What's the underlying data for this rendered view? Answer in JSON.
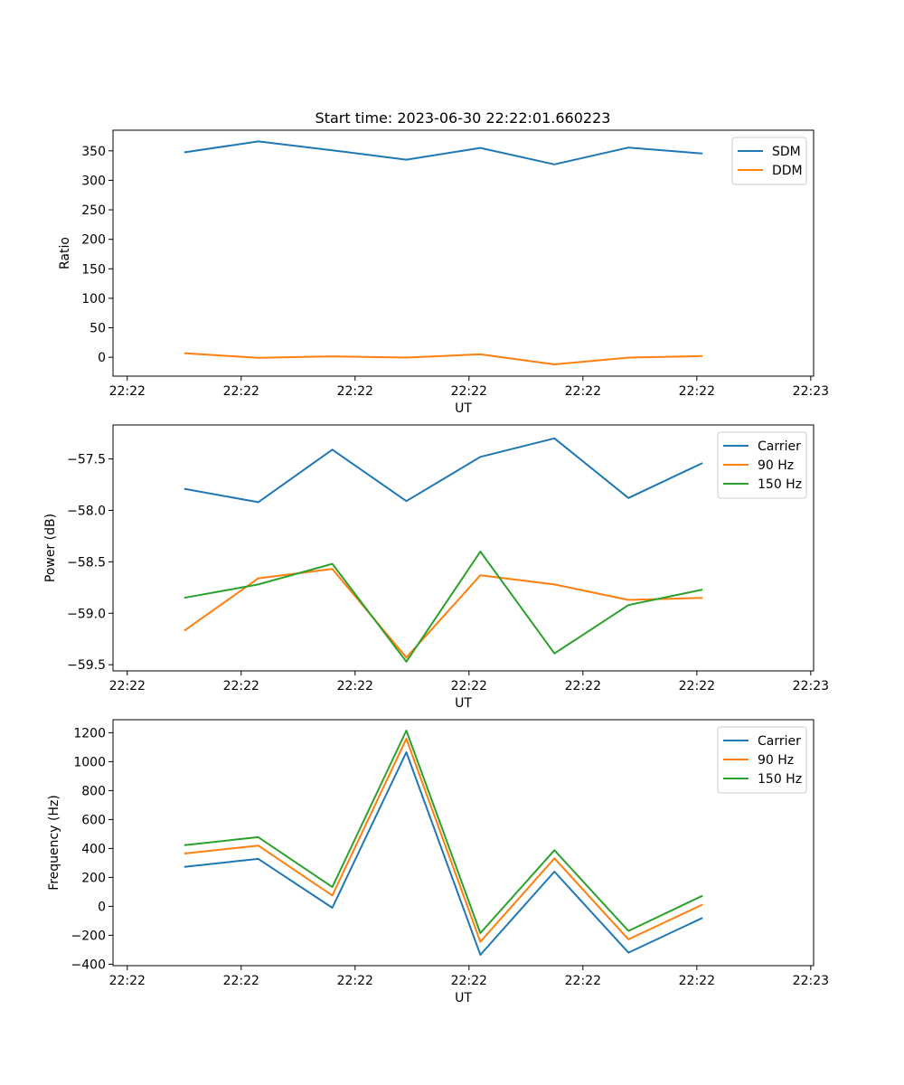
{
  "figure": {
    "title": "Start time: 2023-06-30 22:22:01.660223"
  },
  "chart_data": [
    {
      "type": "line",
      "xlabel": "UT",
      "ylabel": "Ratio",
      "x_tick_labels": [
        "22:22",
        "22:22",
        "22:22",
        "22:22",
        "22:22",
        "22:22",
        "22:23"
      ],
      "x_ticks": [
        0,
        2,
        4,
        6,
        8,
        10,
        12
      ],
      "xlim": [
        -0.25,
        12.05
      ],
      "ylim": [
        -32,
        385
      ],
      "y_ticks": [
        0,
        50,
        100,
        150,
        200,
        250,
        300,
        350
      ],
      "x": [
        1,
        2.3,
        3.6,
        4.9,
        6.2,
        7.5,
        8.8,
        10.1
      ],
      "legend": "upper right",
      "grid": false,
      "series": [
        {
          "name": "SDM",
          "color": "#1f77b4",
          "values": [
            347.5,
            366.0,
            351.0,
            335.0,
            355.0,
            327.0,
            355.5,
            345.5
          ]
        },
        {
          "name": "DDM",
          "color": "#ff7f0e",
          "values": [
            7.0,
            -1.0,
            1.5,
            -0.5,
            5.0,
            -12.0,
            -0.5,
            2.0
          ]
        }
      ]
    },
    {
      "type": "line",
      "xlabel": "UT",
      "ylabel": "Power (dB)",
      "x_tick_labels": [
        "22:22",
        "22:22",
        "22:22",
        "22:22",
        "22:22",
        "22:22",
        "22:23"
      ],
      "x_ticks": [
        0,
        2,
        4,
        6,
        8,
        10,
        12
      ],
      "xlim": [
        -0.25,
        12.05
      ],
      "ylim": [
        -59.56,
        -57.17
      ],
      "y_ticks": [
        -57.5,
        -58.0,
        -58.5,
        -59.0,
        -59.5
      ],
      "y_tick_labels": [
        "−57.5",
        "−58.0",
        "−58.5",
        "−59.0",
        "−59.5"
      ],
      "x": [
        1,
        2.3,
        3.6,
        4.9,
        6.2,
        7.5,
        8.8,
        10.1
      ],
      "legend": "upper right",
      "grid": false,
      "series": [
        {
          "name": "Carrier",
          "color": "#1f77b4",
          "values": [
            -57.79,
            -57.92,
            -57.41,
            -57.91,
            -57.48,
            -57.3,
            -57.88,
            -57.54
          ]
        },
        {
          "name": "90 Hz",
          "color": "#ff7f0e",
          "values": [
            -59.17,
            -58.66,
            -58.57,
            -59.43,
            -58.63,
            -58.72,
            -58.87,
            -58.85
          ]
        },
        {
          "name": "150 Hz",
          "color": "#2ca02c",
          "values": [
            -58.85,
            -58.72,
            -58.52,
            -59.47,
            -58.4,
            -59.39,
            -58.92,
            -58.77
          ]
        }
      ]
    },
    {
      "type": "line",
      "xlabel": "UT",
      "ylabel": "Frequency (Hz)",
      "x_tick_labels": [
        "22:22",
        "22:22",
        "22:22",
        "22:22",
        "22:22",
        "22:22",
        "22:23"
      ],
      "x_ticks": [
        0,
        2,
        4,
        6,
        8,
        10,
        12
      ],
      "xlim": [
        -0.25,
        12.05
      ],
      "ylim": [
        -410,
        1290
      ],
      "y_ticks": [
        1200,
        1000,
        800,
        600,
        400,
        200,
        0,
        -200,
        -400
      ],
      "y_tick_labels": [
        "1200",
        "1000",
        "800",
        "600",
        "400",
        "200",
        "0",
        "−200",
        "−400"
      ],
      "x": [
        1,
        2.3,
        3.6,
        4.9,
        6.2,
        7.5,
        8.8,
        10.1
      ],
      "legend": "upper right",
      "grid": false,
      "series": [
        {
          "name": "Carrier",
          "color": "#1f77b4",
          "values": [
            273,
            328,
            -10,
            1065,
            -335,
            240,
            -320,
            -80
          ]
        },
        {
          "name": "90 Hz",
          "color": "#ff7f0e",
          "values": [
            365,
            420,
            75,
            1158,
            -245,
            332,
            -228,
            12
          ]
        },
        {
          "name": "150 Hz",
          "color": "#2ca02c",
          "values": [
            423,
            478,
            133,
            1215,
            -185,
            388,
            -170,
            73
          ]
        }
      ]
    }
  ]
}
